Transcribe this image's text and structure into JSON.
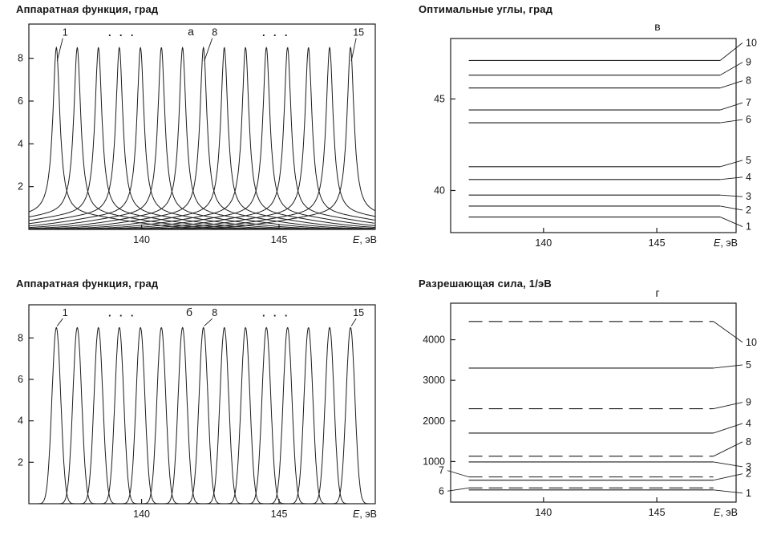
{
  "figure": {
    "background": "#ffffff",
    "line_color": "#1c1c1c"
  },
  "chart_data": [
    {
      "id": "a",
      "type": "line",
      "panel_letter": "а",
      "title": "Аппаратная функция, град",
      "xlabel": "E, эВ",
      "xlim": [
        135.9,
        148.5
      ],
      "ylim": [
        0,
        9.6
      ],
      "xticks": [
        140,
        145
      ],
      "yticks": [
        2,
        4,
        6,
        8
      ],
      "grid": false,
      "peaks": {
        "count": 15,
        "shape": "lorentzian_pedestal",
        "amplitude": 7.8,
        "width": 0.155,
        "pedestal_amplitude": 0.7,
        "pedestal_sigma": 2.3,
        "centers": [
          136.9,
          137.66,
          138.43,
          139.19,
          139.96,
          140.72,
          141.49,
          142.25,
          143.01,
          143.78,
          144.54,
          145.31,
          146.07,
          146.84,
          147.6
        ]
      },
      "annotations": [
        {
          "text": "1",
          "peak_index": 0,
          "dx": 11
        },
        {
          "text": "· · ·",
          "E": 139.3
        },
        {
          "text": "8",
          "peak_index": 7,
          "dx": 14
        },
        {
          "text": "· · ·",
          "E": 144.9
        },
        {
          "text": "15",
          "peak_index": 14,
          "dx": 10
        }
      ]
    },
    {
      "id": "v",
      "type": "line",
      "panel_letter": "в",
      "title": "Оптимальные углы, град",
      "xlabel": "E, эВ",
      "xlim": [
        135.9,
        148.5
      ],
      "ylim": [
        37.7,
        48.3
      ],
      "xticks": [
        140,
        145
      ],
      "yticks": [
        40,
        45
      ],
      "grid": false,
      "line_span": [
        136.7,
        147.8
      ],
      "series": [
        {
          "name": "10",
          "value": 47.1,
          "style": "solid",
          "label_side": "right",
          "label_dy": -22
        },
        {
          "name": "9",
          "value": 46.3,
          "style": "solid",
          "label_side": "right",
          "label_dy": -16
        },
        {
          "name": "8",
          "value": 45.6,
          "style": "solid",
          "label_side": "right",
          "label_dy": -9
        },
        {
          "name": "7",
          "value": 44.4,
          "style": "solid",
          "label_side": "right",
          "label_dy": -9
        },
        {
          "name": "6",
          "value": 43.7,
          "style": "solid",
          "label_side": "right",
          "label_dy": -4
        },
        {
          "name": "5",
          "value": 41.3,
          "style": "solid",
          "label_side": "right",
          "label_dy": -8
        },
        {
          "name": "4",
          "value": 40.6,
          "style": "solid",
          "label_side": "right",
          "label_dy": -3
        },
        {
          "name": "3",
          "value": 39.75,
          "style": "solid",
          "label_side": "right",
          "label_dy": 2
        },
        {
          "name": "2",
          "value": 39.15,
          "style": "solid",
          "label_side": "right",
          "label_dy": 5
        },
        {
          "name": "1",
          "value": 38.55,
          "style": "solid",
          "label_side": "right",
          "label_dy": 12
        }
      ]
    },
    {
      "id": "b",
      "type": "line",
      "panel_letter": "б",
      "title": "Аппаратная функция, град",
      "xlabel": "E, эВ",
      "xlim": [
        135.9,
        148.5
      ],
      "ylim": [
        0,
        9.6
      ],
      "xticks": [
        140,
        145
      ],
      "yticks": [
        2,
        4,
        6,
        8
      ],
      "grid": false,
      "peaks": {
        "count": 15,
        "shape": "gaussian",
        "amplitude": 8.5,
        "width": 0.16,
        "centers": [
          136.9,
          137.66,
          138.43,
          139.19,
          139.96,
          140.72,
          141.49,
          142.25,
          143.01,
          143.78,
          144.54,
          145.31,
          146.07,
          146.84,
          147.6
        ]
      },
      "annotations": [
        {
          "text": "1",
          "peak_index": 0,
          "dx": 11
        },
        {
          "text": "· · ·",
          "E": 139.3
        },
        {
          "text": "8",
          "peak_index": 7,
          "dx": 14
        },
        {
          "text": "· · ·",
          "E": 144.9
        },
        {
          "text": "15",
          "peak_index": 14,
          "dx": 10
        }
      ]
    },
    {
      "id": "g",
      "type": "line",
      "panel_letter": "г",
      "title": "Разрешающая сила, 1/эВ",
      "xlabel": "E, эВ",
      "xlim": [
        135.9,
        148.5
      ],
      "ylim": [
        0,
        4900
      ],
      "xticks": [
        140,
        145
      ],
      "yticks": [
        1000,
        2000,
        3000,
        4000
      ],
      "grid": false,
      "line_span": [
        136.7,
        147.5
      ],
      "series": [
        {
          "name": "10",
          "value": 4450,
          "style": "dashed",
          "label_side": "right",
          "label_dy": 26
        },
        {
          "name": "5",
          "value": 3300,
          "style": "solid",
          "label_side": "right",
          "label_dy": -4
        },
        {
          "name": "9",
          "value": 2300,
          "style": "dashed",
          "label_side": "right",
          "label_dy": -8
        },
        {
          "name": "4",
          "value": 1700,
          "style": "solid",
          "label_side": "right",
          "label_dy": -12
        },
        {
          "name": "8",
          "value": 1130,
          "style": "dashed",
          "label_side": "right",
          "label_dy": -18
        },
        {
          "name": "3",
          "value": 990,
          "style": "solid",
          "label_side": "right",
          "label_dy": 6
        },
        {
          "name": "7",
          "value": 620,
          "style": "dashed",
          "label_side": "left",
          "label_dy": -8
        },
        {
          "name": "2",
          "value": 540,
          "style": "solid",
          "label_side": "right",
          "label_dy": -8
        },
        {
          "name": "6",
          "value": 350,
          "style": "dashed",
          "label_side": "left",
          "label_dy": 4
        },
        {
          "name": "1",
          "value": 300,
          "style": "solid",
          "label_side": "right",
          "label_dy": 4
        }
      ]
    }
  ]
}
